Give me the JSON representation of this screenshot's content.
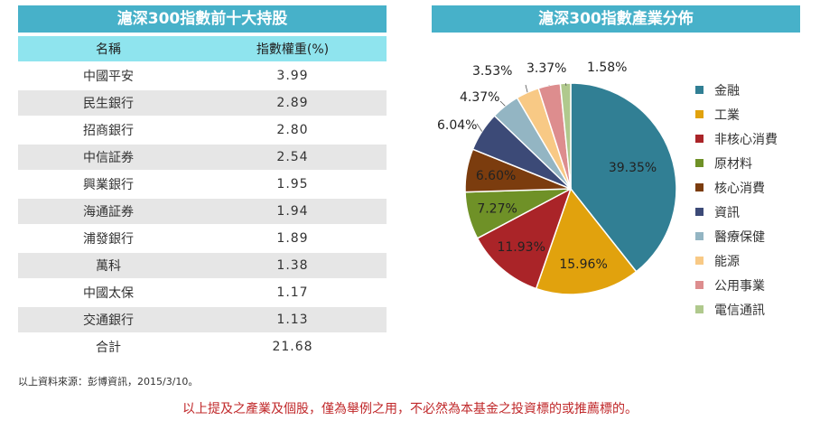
{
  "table": {
    "title": "滬深300指數前十大持股",
    "headers": [
      "名稱",
      "指數權重(%)"
    ],
    "rows": [
      [
        "中國平安",
        "3.99"
      ],
      [
        "民生銀行",
        "2.89"
      ],
      [
        "招商銀行",
        "2.80"
      ],
      [
        "中信証券",
        "2.54"
      ],
      [
        "興業銀行",
        "1.95"
      ],
      [
        "海通証券",
        "1.94"
      ],
      [
        "浦發銀行",
        "1.89"
      ],
      [
        "萬科",
        "1.38"
      ],
      [
        "中國太保",
        "1.17"
      ],
      [
        "交通銀行",
        "1.13"
      ]
    ],
    "total": [
      "合計",
      "21.68"
    ]
  },
  "chart_data": {
    "type": "pie",
    "title": "滬深300指數產業分佈",
    "legend_position": "right",
    "categories": [
      "金融",
      "工業",
      "非核心消費",
      "原材料",
      "核心消費",
      "資訊",
      "醫療保健",
      "能源",
      "公用事業",
      "電信通訊"
    ],
    "values": [
      39.35,
      15.96,
      11.93,
      7.27,
      6.6,
      6.04,
      4.37,
      3.53,
      3.37,
      1.58
    ],
    "labels": [
      "39.35%",
      "15.96%",
      "11.93%",
      "7.27%",
      "6.60%",
      "6.04%",
      "4.37%",
      "3.53%",
      "3.37%",
      "1.58%"
    ],
    "colors": [
      "#317f94",
      "#e1a20d",
      "#aa2428",
      "#6f9127",
      "#7b3c0e",
      "#3c4a77",
      "#93b5c3",
      "#f8c985",
      "#dd8d8e",
      "#b0c98d"
    ]
  },
  "footer": {
    "source": "以上資料來源：彭博資訊，2015/3/10。",
    "disclaimer": "以上提及之產業及個股，僅為舉例之用，不必然為本基金之投資標的或推薦標的。"
  }
}
